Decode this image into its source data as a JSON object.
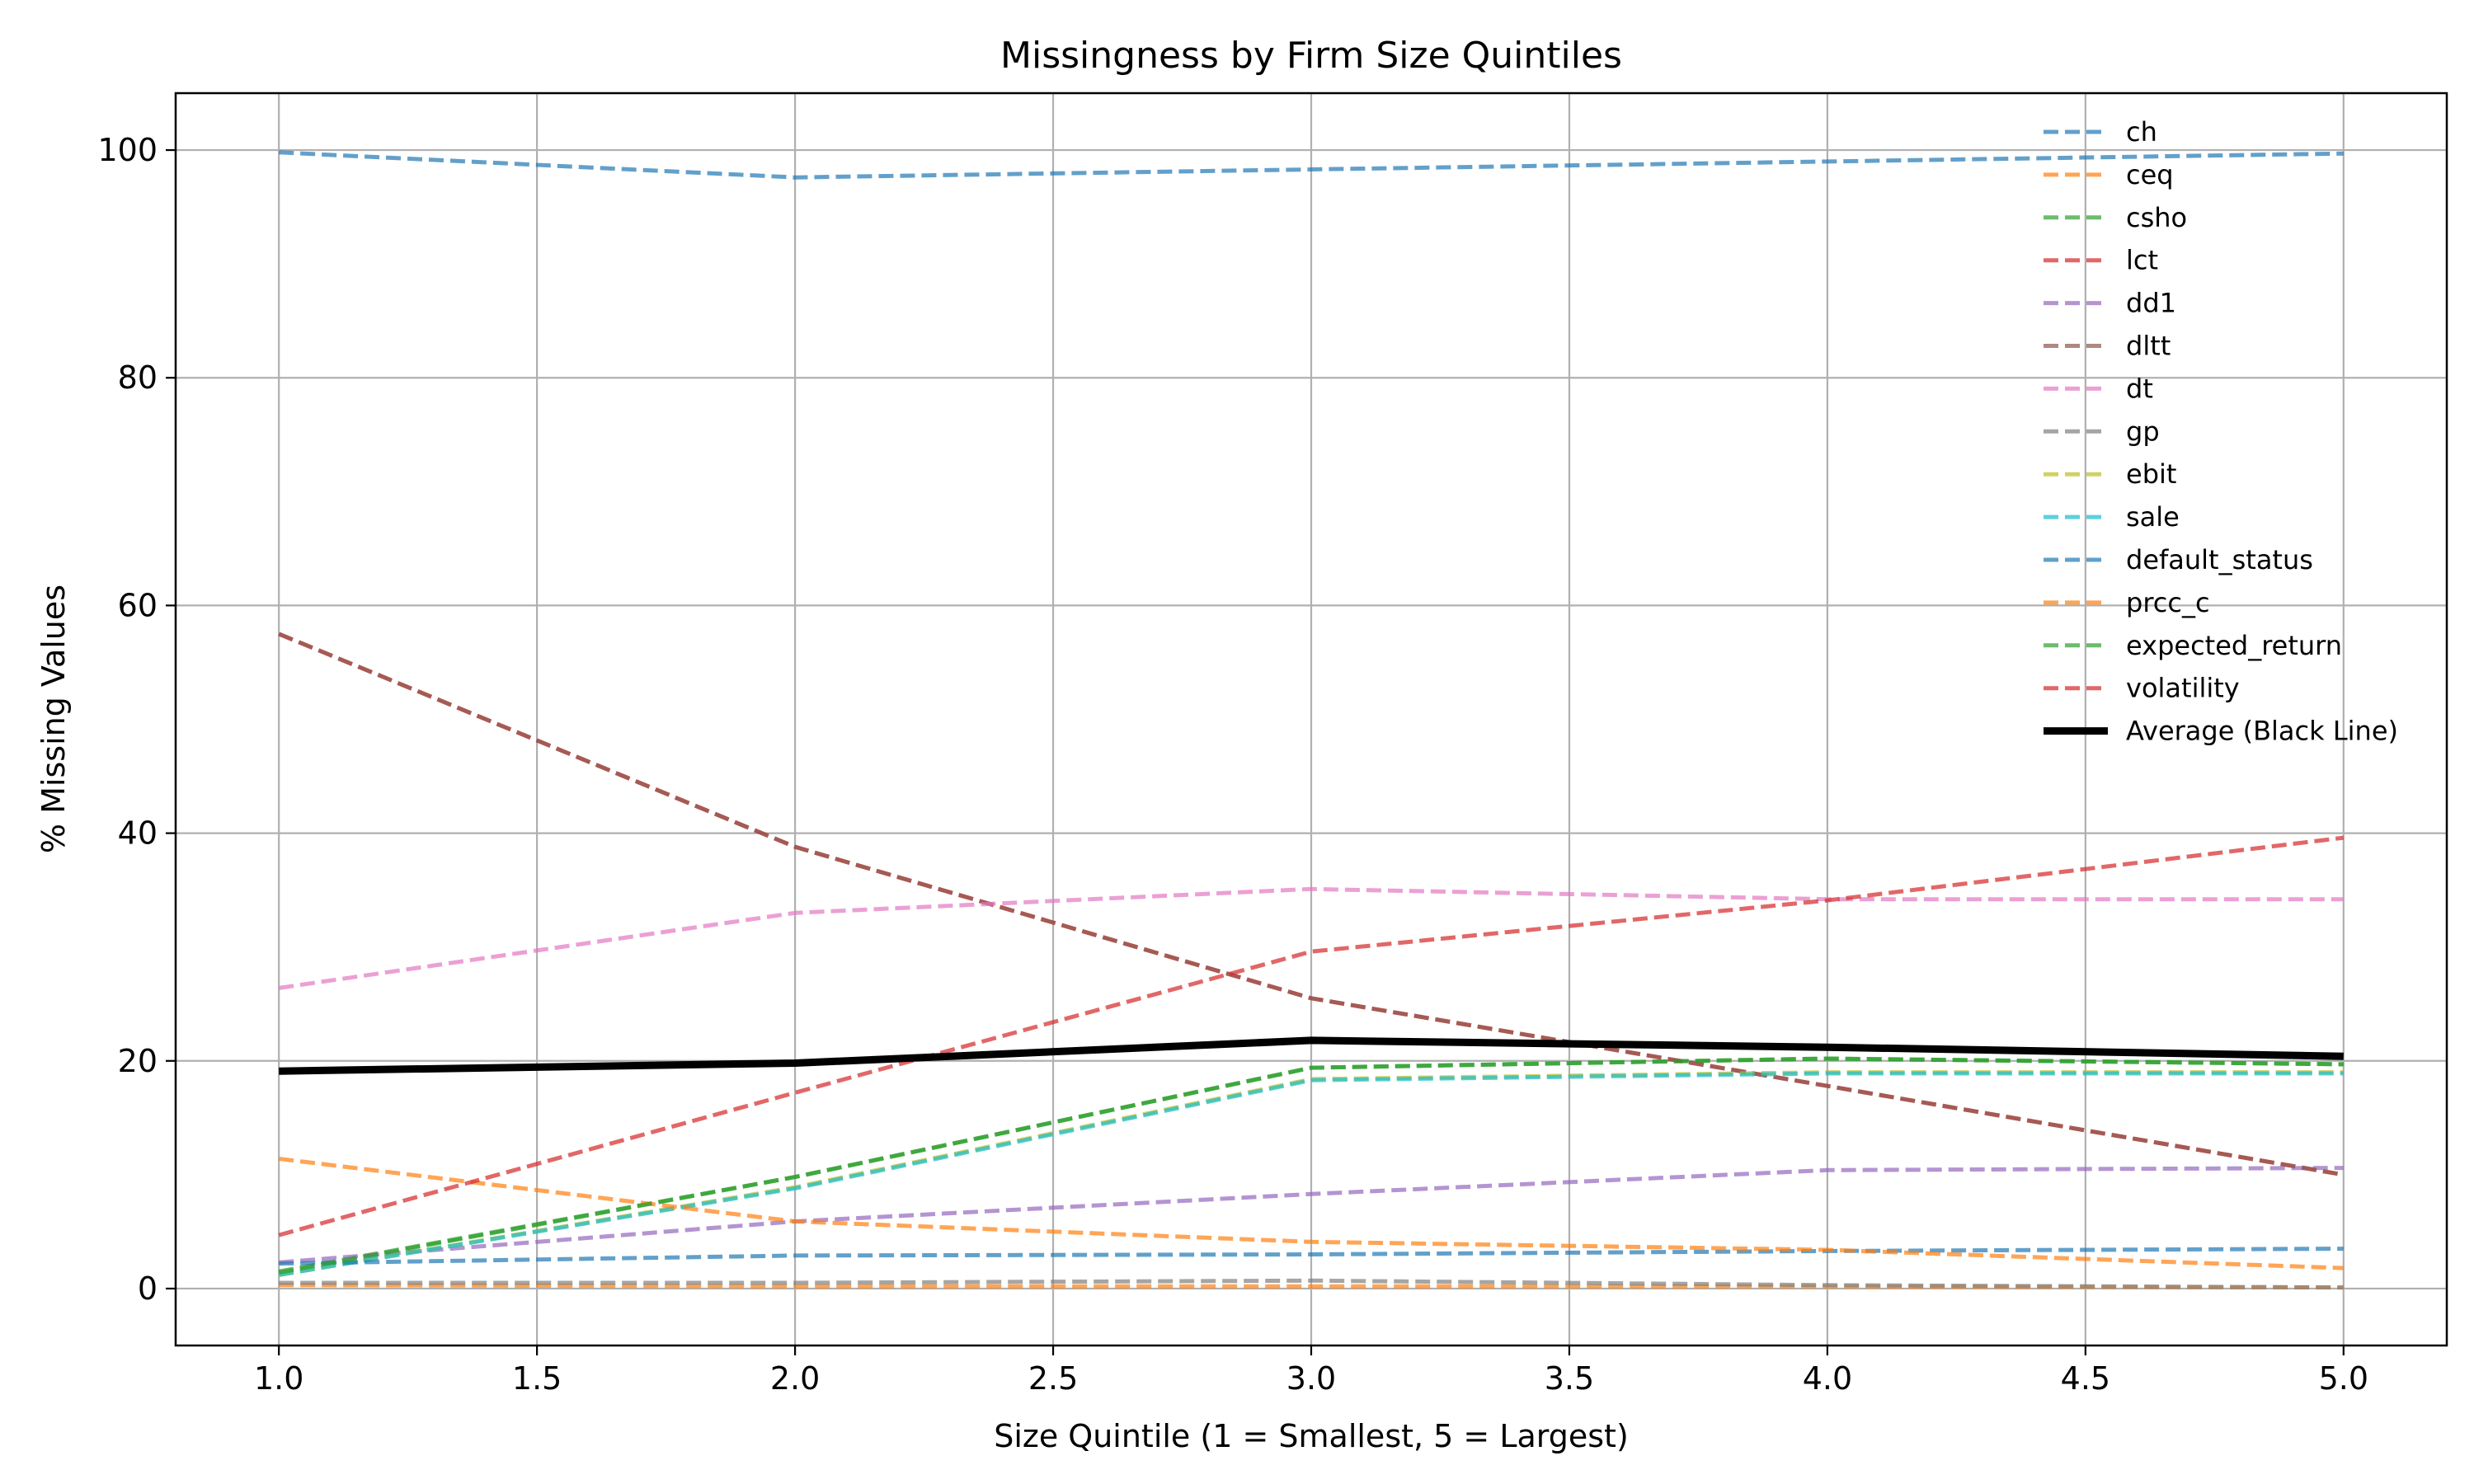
{
  "chart_data": {
    "type": "line",
    "title": "Missingness by Firm Size Quintiles",
    "xlabel": "Size Quintile (1 = Smallest, 5 = Largest)",
    "ylabel": "% Missing Values",
    "xlim": [
      0.8,
      5.2
    ],
    "ylim": [
      -5,
      105
    ],
    "x_ticks": [
      "1.0",
      "1.5",
      "2.0",
      "2.5",
      "3.0",
      "3.5",
      "4.0",
      "4.5",
      "5.0"
    ],
    "y_ticks": [
      "0",
      "20",
      "40",
      "60",
      "80",
      "100"
    ],
    "x": [
      1,
      2,
      3,
      4,
      5
    ],
    "grid": true,
    "legend_position": "upper right",
    "series": [
      {
        "name": "ch",
        "color": "#1f77b4",
        "values": [
          99.8,
          97.6,
          98.3,
          99.0,
          99.7
        ]
      },
      {
        "name": "ceq",
        "color": "#ff7f0e",
        "values": [
          0.3,
          0.2,
          0.2,
          0.2,
          0.1
        ]
      },
      {
        "name": "csho",
        "color": "#2ca02c",
        "values": [
          1.5,
          9.8,
          19.4,
          20.2,
          19.7
        ]
      },
      {
        "name": "lct",
        "color": "#d62728",
        "values": [
          57.5,
          38.8,
          25.5,
          17.8,
          10.0
        ]
      },
      {
        "name": "dd1",
        "color": "#9467bd",
        "values": [
          2.3,
          5.9,
          8.3,
          10.4,
          10.6
        ]
      },
      {
        "name": "dltt",
        "color": "#8c564b",
        "values": [
          57.5,
          38.8,
          25.5,
          17.8,
          10.0
        ]
      },
      {
        "name": "dt",
        "color": "#e377c2",
        "values": [
          26.4,
          33.0,
          35.1,
          34.2,
          34.2
        ]
      },
      {
        "name": "gp",
        "color": "#7f7f7f",
        "values": [
          0.5,
          0.5,
          0.7,
          0.3,
          0.1
        ]
      },
      {
        "name": "ebit",
        "color": "#bcbd22",
        "values": [
          1.2,
          8.9,
          18.4,
          19.0,
          19.0
        ]
      },
      {
        "name": "sale",
        "color": "#17becf",
        "values": [
          1.2,
          8.8,
          18.3,
          18.9,
          18.9
        ]
      },
      {
        "name": "default_status",
        "color": "#1f77b4",
        "values": [
          2.2,
          2.9,
          3.0,
          3.3,
          3.5
        ]
      },
      {
        "name": "prcc_c",
        "color": "#ff7f0e",
        "values": [
          11.4,
          5.9,
          4.1,
          3.4,
          1.8
        ]
      },
      {
        "name": "expected_return",
        "color": "#2ca02c",
        "values": [
          1.4,
          9.8,
          19.4,
          20.2,
          19.7
        ]
      },
      {
        "name": "volatility",
        "color": "#d62728",
        "values": [
          4.7,
          17.2,
          29.6,
          34.1,
          39.6
        ]
      }
    ],
    "average": {
      "name": "Average (Black Line)",
      "color": "#000000",
      "values": [
        19.1,
        19.8,
        21.8,
        21.2,
        20.4
      ]
    }
  }
}
